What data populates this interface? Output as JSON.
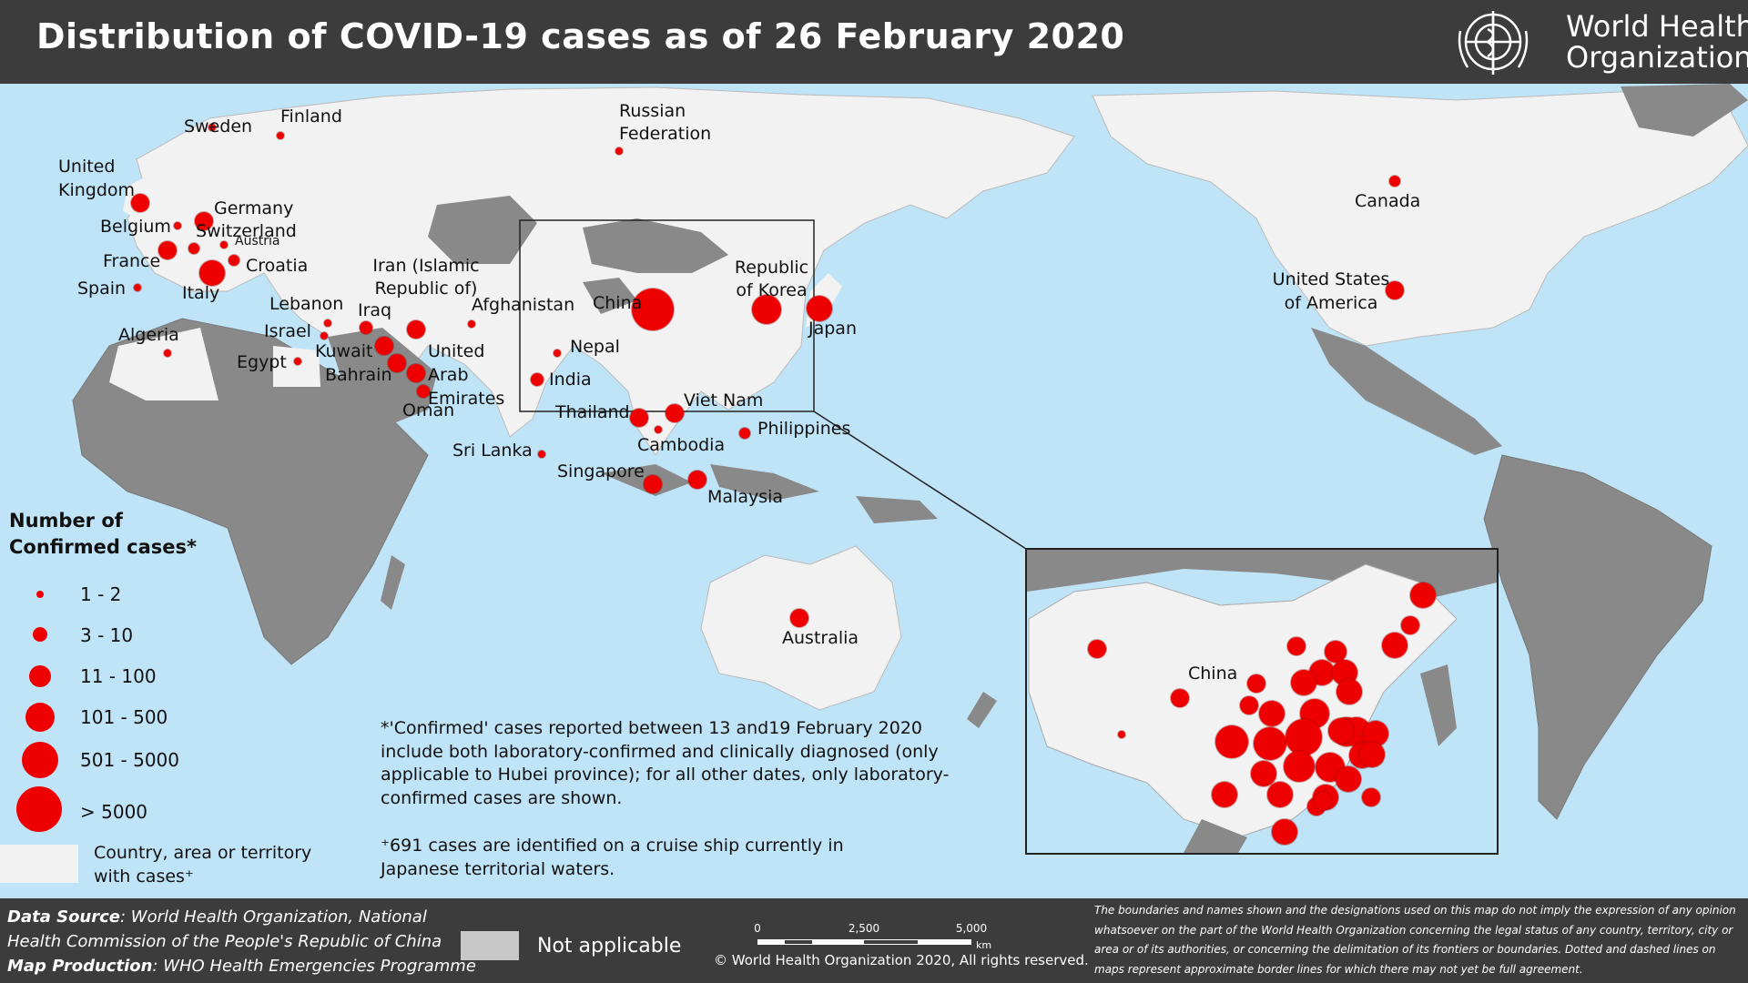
{
  "header": {
    "title": "Distribution of COVID-19 cases as of 26 February 2020",
    "org_line1": "World Health",
    "org_line2": "Organization"
  },
  "countries": [
    {
      "label": "Sweden"
    },
    {
      "label": "Finland"
    },
    {
      "label": "Russian Federation"
    },
    {
      "label": "United Kingdom"
    },
    {
      "label": "Germany"
    },
    {
      "label": "Belgium"
    },
    {
      "label": "Switzerland"
    },
    {
      "label": "Austria"
    },
    {
      "label": "France"
    },
    {
      "label": "Croatia"
    },
    {
      "label": "Spain"
    },
    {
      "label": "Italy"
    },
    {
      "label": "Iran (Islamic Republic of)"
    },
    {
      "label": "Lebanon"
    },
    {
      "label": "Iraq"
    },
    {
      "label": "Afghanistan"
    },
    {
      "label": "China"
    },
    {
      "label": "Republic of Korea"
    },
    {
      "label": "Japan"
    },
    {
      "label": "Israel"
    },
    {
      "label": "Algeria"
    },
    {
      "label": "Kuwait"
    },
    {
      "label": "Egypt"
    },
    {
      "label": "United Arab Emirates"
    },
    {
      "label": "Nepal"
    },
    {
      "label": "Bahrain"
    },
    {
      "label": "India"
    },
    {
      "label": "Oman"
    },
    {
      "label": "Viet Nam"
    },
    {
      "label": "Thailand"
    },
    {
      "label": "Philippines"
    },
    {
      "label": "Cambodia"
    },
    {
      "label": "Sri Lanka"
    },
    {
      "label": "Singapore"
    },
    {
      "label": "Malaysia"
    },
    {
      "label": "Australia"
    },
    {
      "label": "Canada"
    },
    {
      "label": "United States of America"
    }
  ],
  "inset": {
    "label": "China"
  },
  "legend": {
    "title": "Number of Confirmed cases*",
    "classes": [
      "1 - 2",
      "3 - 10",
      "11 - 100",
      "101 - 500",
      "501 - 5000",
      "> 5000"
    ],
    "country_with_cases": "Country, area or territory with cases⁺",
    "not_applicable": "Not applicable"
  },
  "colors": {
    "case_dot": "#ee0000",
    "ocean": "#bfe3f7",
    "with_cases": "#f2f2f2",
    "no_cases": "#898989",
    "not_applicable": "#c8c8c8",
    "bar": "#3c3c3c"
  },
  "notes": {
    "confirmed": "*'Confirmed' cases reported between 13 and19 February 2020 include both laboratory-confirmed and clinically diagnosed (only applicable to Hubei province); for all other dates, only laboratory-confirmed cases are shown.",
    "cruise": "⁺691 cases are identified on a cruise ship currently in Japanese territorial waters."
  },
  "footer": {
    "data_source_label": "Data Source",
    "data_source_text": ": World Health Organization, National",
    "data_source_line2": "Health Commission of the People's Republic of China",
    "map_production_label": "Map Production",
    "map_production_text": ": WHO Health Emergencies Programme",
    "scale_ticks": [
      "0",
      "2,500",
      "5,000"
    ],
    "scale_unit": "km",
    "copyright": "© World Health Organization  2020,  All rights reserved.",
    "disclaimer": "The boundaries and names shown and the designations used on this map do not imply the expression of any opinion whatsoever on the part of the World Health Organization concerning the legal status of any country, territory, city or area or of its authorities, or concerning the delimitation of its frontiers or boundaries. Dotted and dashed lines on maps represent approximate border lines for which there may not yet be full agreement."
  }
}
